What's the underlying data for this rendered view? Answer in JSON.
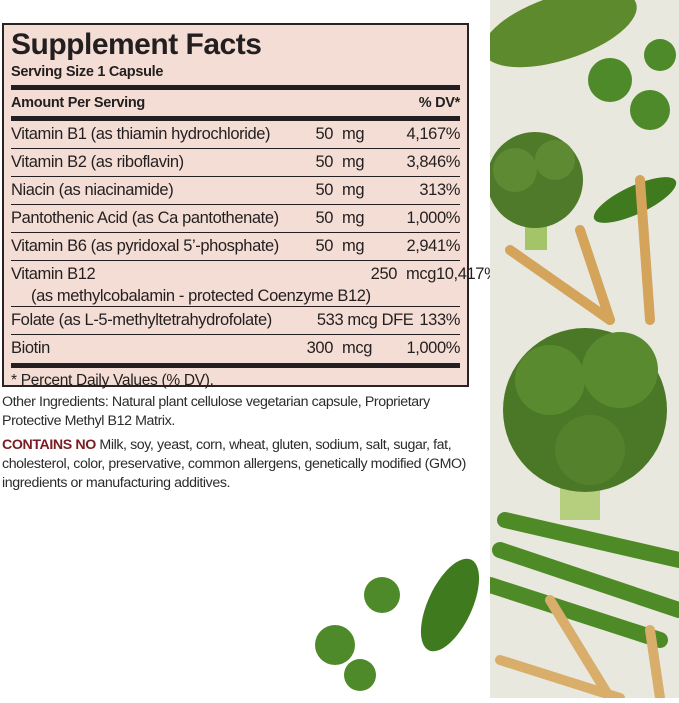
{
  "label": {
    "title": "Supplement Facts",
    "serving_size": "Serving Size 1 Capsule",
    "header_left": "Amount Per Serving",
    "header_right": "% DV*",
    "rows": [
      {
        "name": "Vitamin B1 (as thiamin hydrochloride)",
        "amount": "50",
        "unit": "mg",
        "dv": "4,167%"
      },
      {
        "name": "Vitamin B2 (as riboflavin)",
        "amount": "50",
        "unit": "mg",
        "dv": "3,846%"
      },
      {
        "name": "Niacin (as niacinamide)",
        "amount": "50",
        "unit": "mg",
        "dv": "313%"
      },
      {
        "name": "Pantothenic Acid (as Ca pantothenate)",
        "amount": "50",
        "unit": "mg",
        "dv": "1,000%"
      },
      {
        "name": "Vitamin B6 (as pyridoxal 5’-phosphate)",
        "amount": "50",
        "unit": "mg",
        "dv": "2,941%"
      },
      {
        "name": "Vitamin B12",
        "sub": "(as methylcobalamin - protected Coenzyme B12)",
        "amount": "250",
        "unit": "mcg",
        "dv": "10,417%"
      },
      {
        "name": "Folate (as L-5-methyltetrahydrofolate)",
        "amount": "533 mcg DFE",
        "dv": "133%"
      },
      {
        "name": "Biotin",
        "amount": "300",
        "unit": "mcg",
        "dv": "1,000%"
      }
    ],
    "footnote": "* Percent Daily Values (% DV)."
  },
  "other_ingredients": "Other Ingredients: Natural plant cellulose vegetarian capsule, Proprietary Protective Methyl B12 Matrix.",
  "contains_no_label": "CONTAINS NO",
  "contains_no_text": " Milk, soy, yeast, corn, wheat, gluten, sodium, salt, sugar, fat, cholesterol, color, preservative, common allergens, genetically modified (GMO) ingredients or manufacturing additives.",
  "colors": {
    "label_bg": "#f4ddd4",
    "contains_no": "#7a1c22",
    "art_bg": "#e9e8df"
  }
}
